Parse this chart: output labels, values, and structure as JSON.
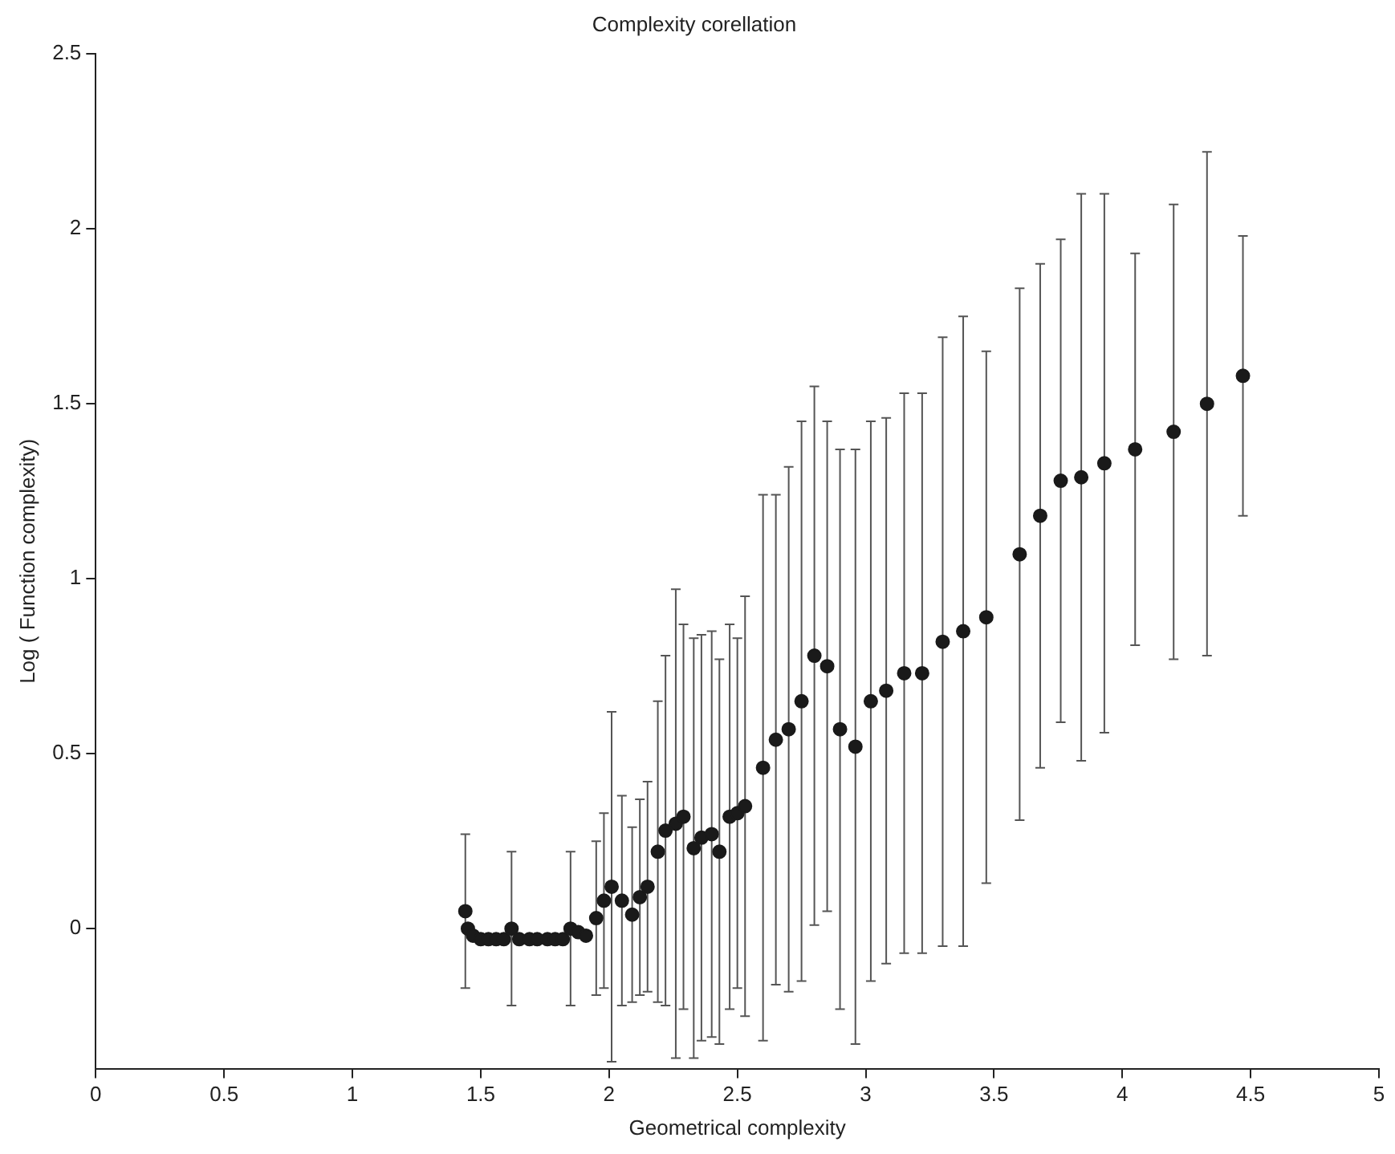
{
  "chart_data": {
    "type": "scatter",
    "title": "Complexity corellation",
    "xlabel": "Geometrical complexity",
    "ylabel": "Log ( Function complexity)",
    "x": [
      1.44,
      1.45,
      1.47,
      1.5,
      1.53,
      1.56,
      1.59,
      1.62,
      1.65,
      1.69,
      1.72,
      1.76,
      1.79,
      1.82,
      1.85,
      1.88,
      1.91,
      1.95,
      1.98,
      2.01,
      2.05,
      2.09,
      2.12,
      2.15,
      2.19,
      2.22,
      2.26,
      2.29,
      2.33,
      2.36,
      2.4,
      2.43,
      2.47,
      2.5,
      2.53,
      2.6,
      2.65,
      2.7,
      2.75,
      2.8,
      2.85,
      2.9,
      2.96,
      3.02,
      3.08,
      3.15,
      3.22,
      3.3,
      3.38,
      3.47,
      3.6,
      3.68,
      3.76,
      3.84,
      3.93,
      4.05,
      4.2,
      4.33,
      4.47
    ],
    "values": [
      0.05,
      0,
      -0.02,
      -0.03,
      -0.03,
      -0.03,
      -0.03,
      0,
      -0.03,
      -0.03,
      -0.03,
      -0.03,
      -0.03,
      -0.03,
      0,
      -0.01,
      -0.02,
      0.03,
      0.08,
      0.12,
      0.08,
      0.04,
      0.09,
      0.12,
      0.22,
      0.28,
      0.3,
      0.32,
      0.23,
      0.26,
      0.27,
      0.22,
      0.32,
      0.33,
      0.35,
      0.46,
      0.54,
      0.57,
      0.65,
      0.78,
      0.75,
      0.57,
      0.52,
      0.65,
      0.68,
      0.73,
      0.73,
      0.82,
      0.85,
      0.89,
      1.07,
      1.18,
      1.28,
      1.29,
      1.33,
      1.37,
      1.42,
      1.5,
      1.58
    ],
    "errors": [
      0.22,
      null,
      null,
      null,
      null,
      null,
      null,
      0.22,
      null,
      null,
      null,
      null,
      null,
      null,
      0.22,
      null,
      null,
      0.22,
      0.25,
      0.5,
      0.3,
      0.25,
      0.28,
      0.3,
      0.43,
      0.5,
      0.67,
      0.55,
      0.6,
      0.58,
      0.58,
      0.55,
      0.55,
      0.5,
      0.6,
      0.78,
      0.7,
      0.75,
      0.8,
      0.77,
      0.7,
      0.8,
      0.85,
      0.8,
      0.78,
      0.8,
      0.8,
      0.87,
      0.9,
      0.76,
      0.76,
      0.72,
      0.69,
      0.81,
      0.77,
      0.56,
      0.65,
      0.72,
      0.4
    ],
    "color": "#1a1a1a",
    "marker": "circle",
    "grid": false,
    "legend": false,
    "xlim": [
      0,
      5
    ],
    "xticks": [
      0,
      0.5,
      1,
      1.5,
      2,
      2.5,
      3,
      3.5,
      4,
      4.5,
      5
    ],
    "ylim": [
      -0.4,
      2.5
    ],
    "yticks": [
      0,
      0.5,
      1,
      1.5,
      2,
      2.5
    ]
  }
}
